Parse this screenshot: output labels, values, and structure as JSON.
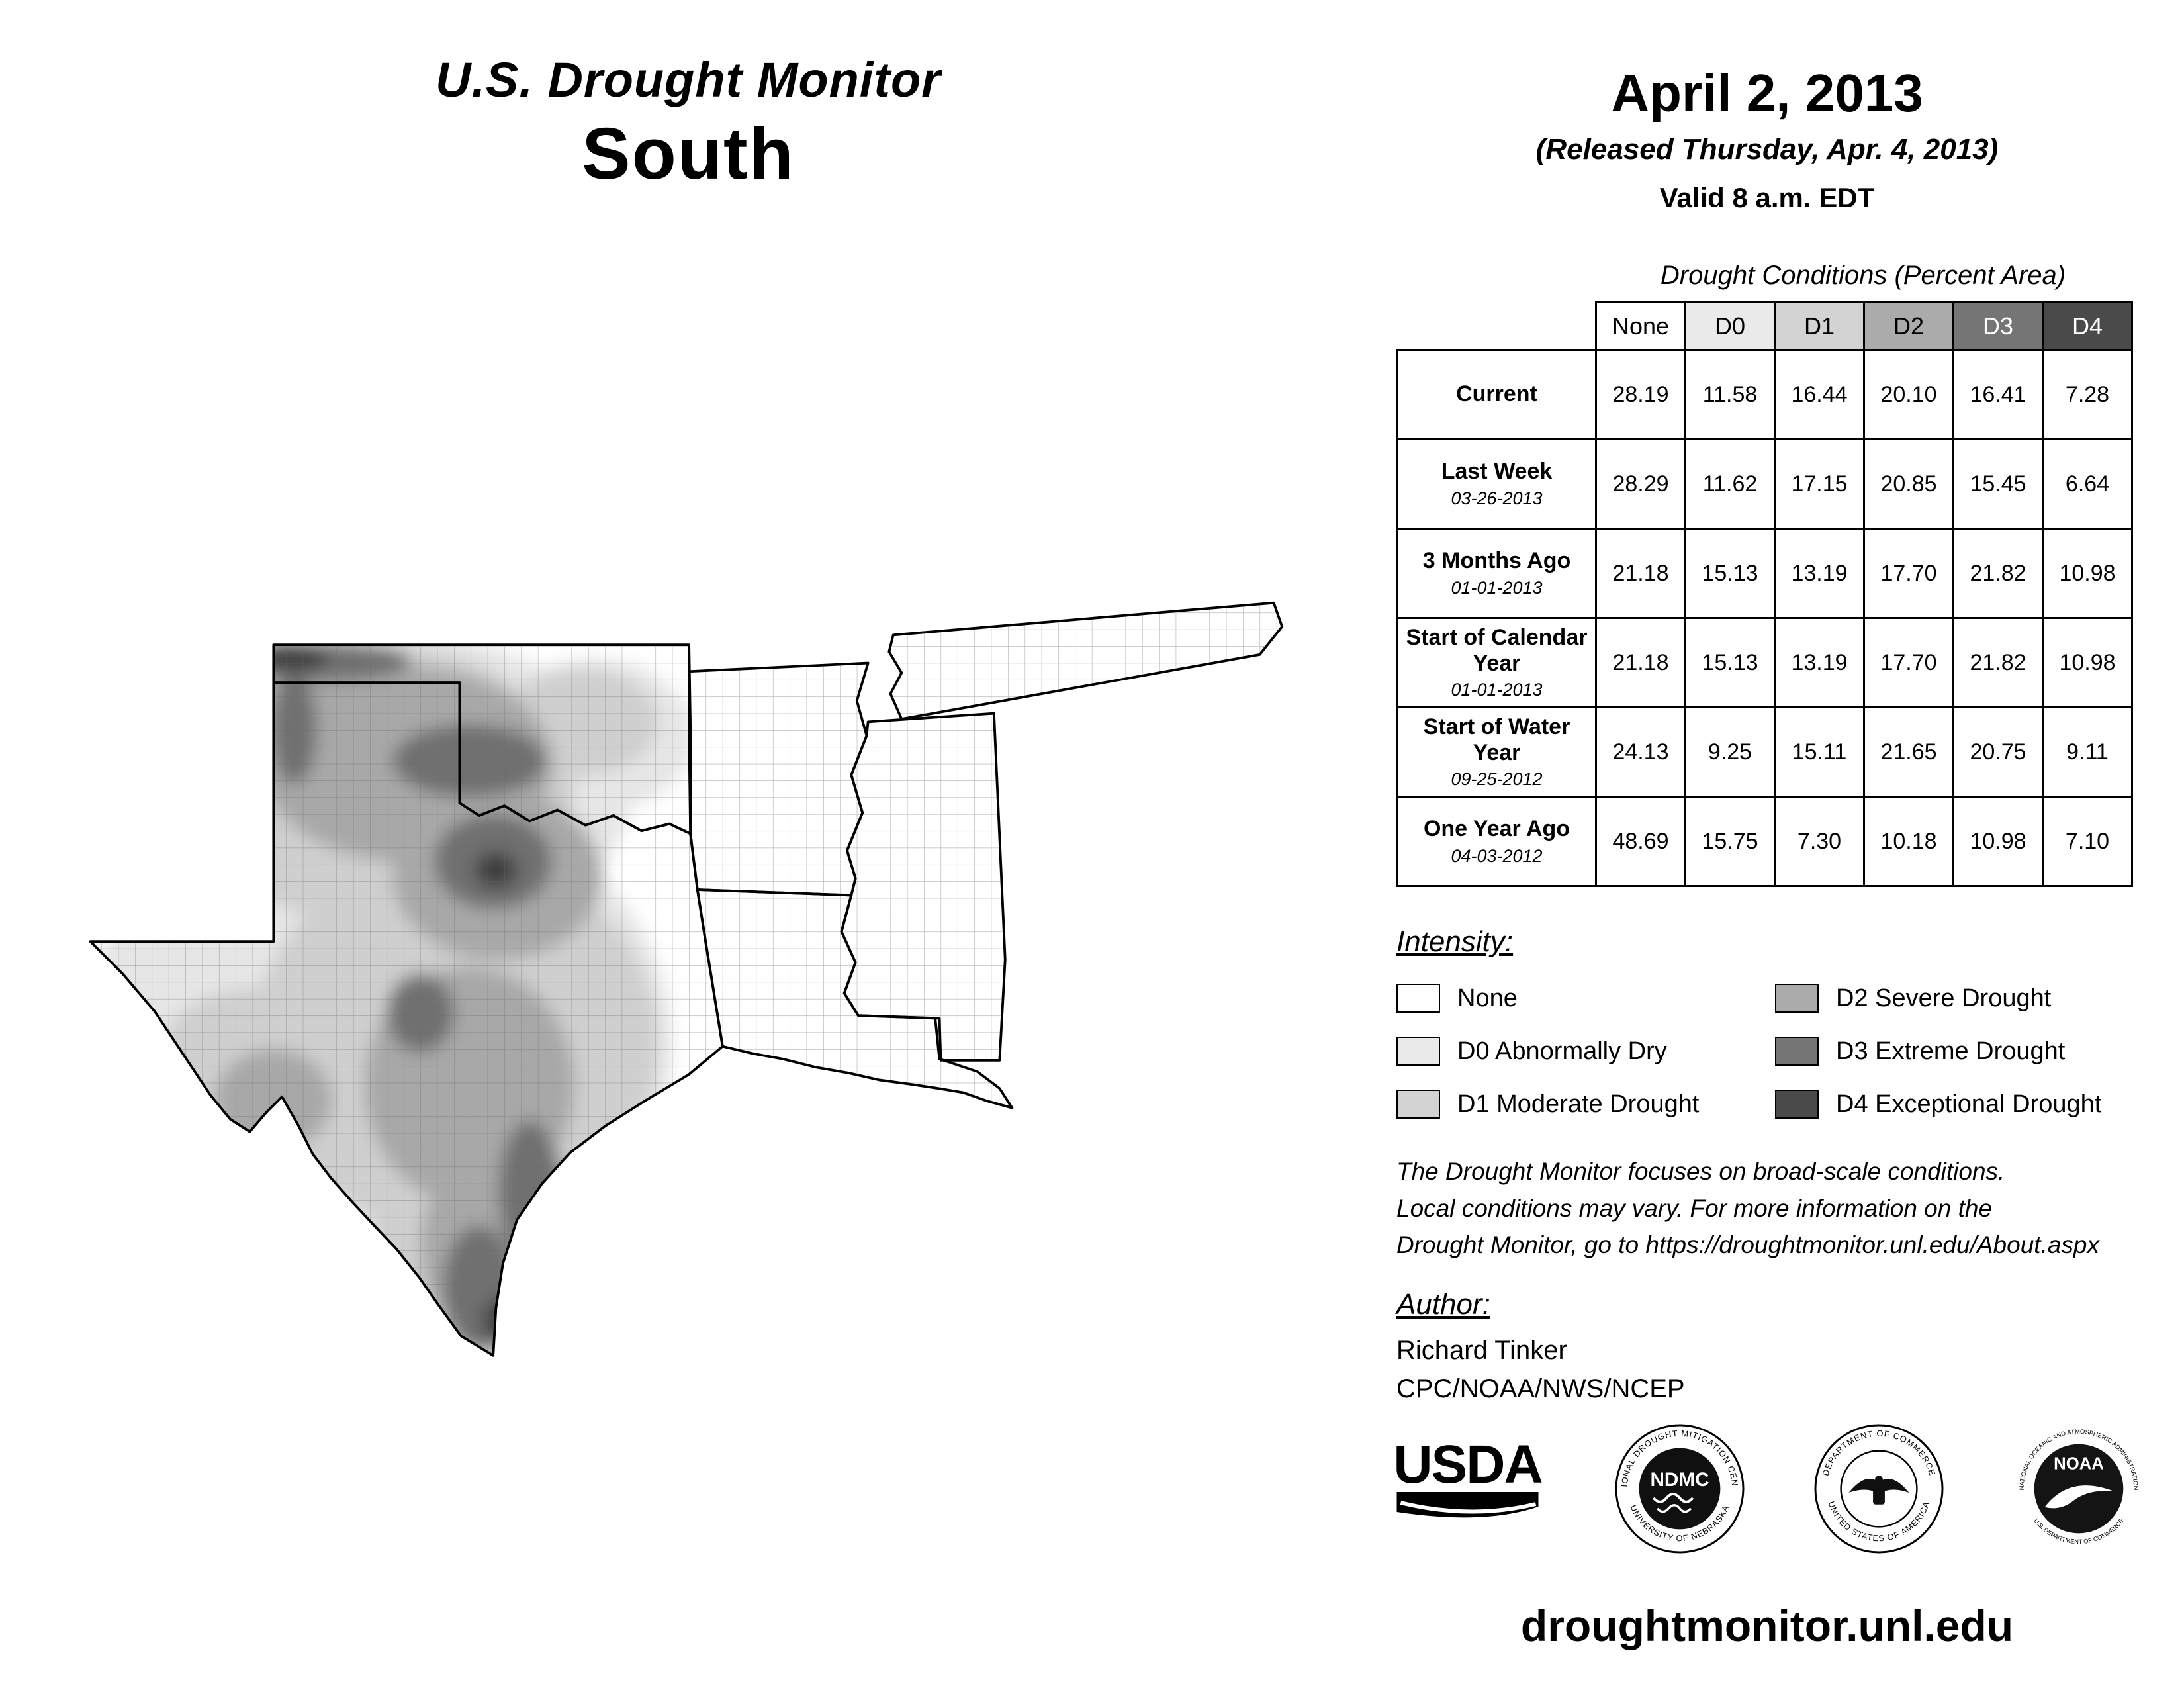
{
  "header": {
    "title": "U.S. Drought Monitor",
    "region": "South",
    "date": "April 2, 2013",
    "released": "(Released Thursday, Apr. 4, 2013)",
    "valid": "Valid 8 a.m. EDT"
  },
  "table": {
    "caption": "Drought Conditions (Percent Area)",
    "columns": [
      "None",
      "D0",
      "D1",
      "D2",
      "D3",
      "D4"
    ],
    "header_colors": [
      "#ffffff",
      "#eaeaea",
      "#d3d3d3",
      "#ababab",
      "#757575",
      "#4a4a4a"
    ],
    "header_text_colors": [
      "#000000",
      "#000000",
      "#000000",
      "#000000",
      "#ffffff",
      "#ffffff"
    ],
    "rows": [
      {
        "label": "Current",
        "date": "",
        "values": [
          "28.19",
          "11.58",
          "16.44",
          "20.10",
          "16.41",
          "7.28"
        ]
      },
      {
        "label": "Last Week",
        "date": "03-26-2013",
        "values": [
          "28.29",
          "11.62",
          "17.15",
          "20.85",
          "15.45",
          "6.64"
        ]
      },
      {
        "label": "3 Months Ago",
        "date": "01-01-2013",
        "values": [
          "21.18",
          "15.13",
          "13.19",
          "17.70",
          "21.82",
          "10.98"
        ]
      },
      {
        "label": "Start of Calendar Year",
        "date": "01-01-2013",
        "values": [
          "21.18",
          "15.13",
          "13.19",
          "17.70",
          "21.82",
          "10.98"
        ]
      },
      {
        "label": "Start of Water Year",
        "date": "09-25-2012",
        "values": [
          "24.13",
          "9.25",
          "15.11",
          "21.65",
          "20.75",
          "9.11"
        ]
      },
      {
        "label": "One Year Ago",
        "date": "04-03-2012",
        "values": [
          "48.69",
          "15.75",
          "7.30",
          "10.18",
          "10.98",
          "7.10"
        ]
      }
    ]
  },
  "legend": {
    "heading": "Intensity:",
    "items": [
      {
        "label": "None",
        "color": "#ffffff"
      },
      {
        "label": "D0 Abnormally Dry",
        "color": "#eaeaea"
      },
      {
        "label": "D1 Moderate Drought",
        "color": "#d3d3d3"
      },
      {
        "label": "D2 Severe Drought",
        "color": "#ababab"
      },
      {
        "label": "D3 Extreme Drought",
        "color": "#757575"
      },
      {
        "label": "D4 Exceptional Drought",
        "color": "#4a4a4a"
      }
    ]
  },
  "notes": {
    "lines": [
      "The Drought Monitor focuses on broad-scale conditions.",
      "Local conditions may vary. For more information on the",
      "Drought Monitor, go to https://droughtmonitor.unl.edu/About.aspx"
    ]
  },
  "author": {
    "heading": "Author:",
    "name": "Richard Tinker",
    "org": "CPC/NOAA/NWS/NCEP"
  },
  "logos": {
    "usda": {
      "text": "USDA"
    },
    "ndmc": {
      "center": "NDMC",
      "ring_top": "NATIONAL DROUGHT MITIGATION CENTER",
      "ring_bottom": "UNIVERSITY OF NEBRASKA"
    },
    "doc": {
      "ring_top": "DEPARTMENT OF COMMERCE",
      "ring_bottom": "UNITED STATES OF AMERICA"
    },
    "noaa": {
      "center": "NOAA",
      "ring_top": "NATIONAL OCEANIC AND ATMOSPHERIC ADMINISTRATION",
      "ring_bottom": "U.S. DEPARTMENT OF COMMERCE"
    }
  },
  "footer": {
    "url": "droughtmonitor.unl.edu"
  },
  "map": {
    "drought_colors": {
      "d0": "#e6e6e6",
      "d1": "#cfcfcf",
      "d2": "#a8a8a8",
      "d3": "#6f6f6f",
      "d4": "#3d3d3d"
    }
  }
}
